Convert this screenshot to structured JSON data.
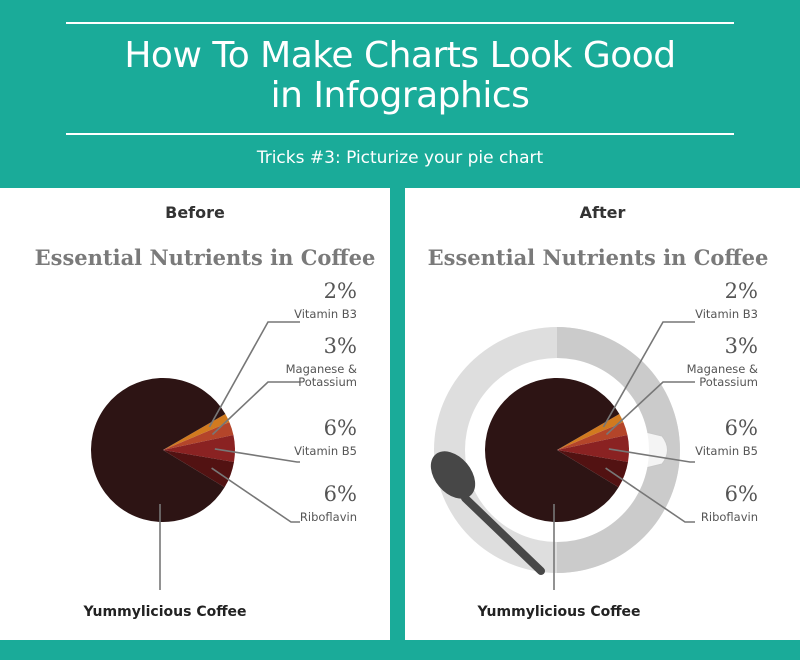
{
  "header": {
    "title_line1": "How To Make Charts Look Good",
    "title_line2": "in Infographics",
    "subtitle": "Tricks #3: Picturize your pie chart"
  },
  "panels": {
    "before_label": "Before",
    "after_label": "After"
  },
  "colors": {
    "teal": "#1aab99",
    "coffee": "#2d1414",
    "vitamin_b3": "#d17a1f",
    "maganese": "#b4452a",
    "vitamin_b5": "#8a2222",
    "riboflavin": "#521212",
    "cup": "#dedede",
    "spoon": "#474747"
  },
  "chart_data": {
    "type": "pie",
    "title": "Essential Nutrients in Coffee",
    "slices": [
      {
        "label": "Vitamin B3",
        "value": 2,
        "display": "2%"
      },
      {
        "label": "Maganese & Potassium",
        "value": 3,
        "display": "3%"
      },
      {
        "label": "Vitamin B5",
        "value": 6,
        "display": "6%"
      },
      {
        "label": "Riboflavin",
        "value": 6,
        "display": "6%"
      },
      {
        "label": "Yummylicious Coffee",
        "value": 83,
        "display": ""
      }
    ]
  }
}
